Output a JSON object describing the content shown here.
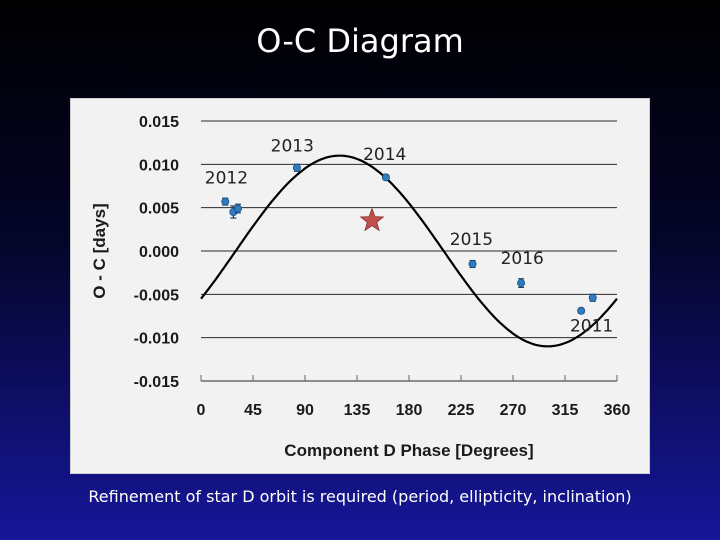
{
  "slide": {
    "title": "O-C Diagram",
    "caption": "Refinement of star D orbit is required (period, ellipticity, inclination)"
  },
  "colors": {
    "background_top": "#000000",
    "background_bottom": "#16169a",
    "panel": "#f2f2f2",
    "points": "#2f7bbf",
    "curve": "#000000",
    "star": "#c0504d"
  },
  "chart_data": {
    "type": "scatter",
    "title": "",
    "xlabel": "Component D Phase [Degrees]",
    "ylabel": "O - C [days]",
    "xlim": [
      0,
      360
    ],
    "ylim": [
      -0.015,
      0.015
    ],
    "x_ticks": [
      "0",
      "45",
      "90",
      "135",
      "180",
      "225",
      "270",
      "315",
      "360"
    ],
    "y_ticks": [
      "0.015",
      "0.010",
      "0.005",
      "0.000",
      "-0.005",
      "-0.010",
      "-0.015"
    ],
    "series": [
      {
        "name": "observations",
        "x": [
          21,
          28,
          32,
          83,
          160,
          235,
          277,
          329,
          339
        ],
        "y": [
          0.0057,
          0.0045,
          0.0049,
          0.0096,
          0.0085,
          -0.0015,
          -0.0037,
          -0.0069,
          -0.0054
        ],
        "err": [
          0.0004,
          0.0007,
          0.0005,
          0.0004,
          0.0003,
          0.0004,
          0.0005,
          0.0003,
          0.0004
        ]
      },
      {
        "name": "model",
        "kind": "curve",
        "amplitude": 0.011,
        "phase_offset_deg": 30
      },
      {
        "name": "current",
        "kind": "star",
        "x": [
          148
        ],
        "y": [
          0.0035
        ]
      }
    ],
    "annotations": [
      {
        "text": "2012",
        "x": 22,
        "y": 0.0078
      },
      {
        "text": "2013",
        "x": 79,
        "y": 0.0115
      },
      {
        "text": "2014",
        "x": 159,
        "y": 0.0105
      },
      {
        "text": "2015",
        "x": 234,
        "y": 0.0007
      },
      {
        "text": "2016",
        "x": 278,
        "y": -0.0015
      },
      {
        "text": "2011",
        "x": 338,
        "y": -0.0093
      }
    ]
  }
}
